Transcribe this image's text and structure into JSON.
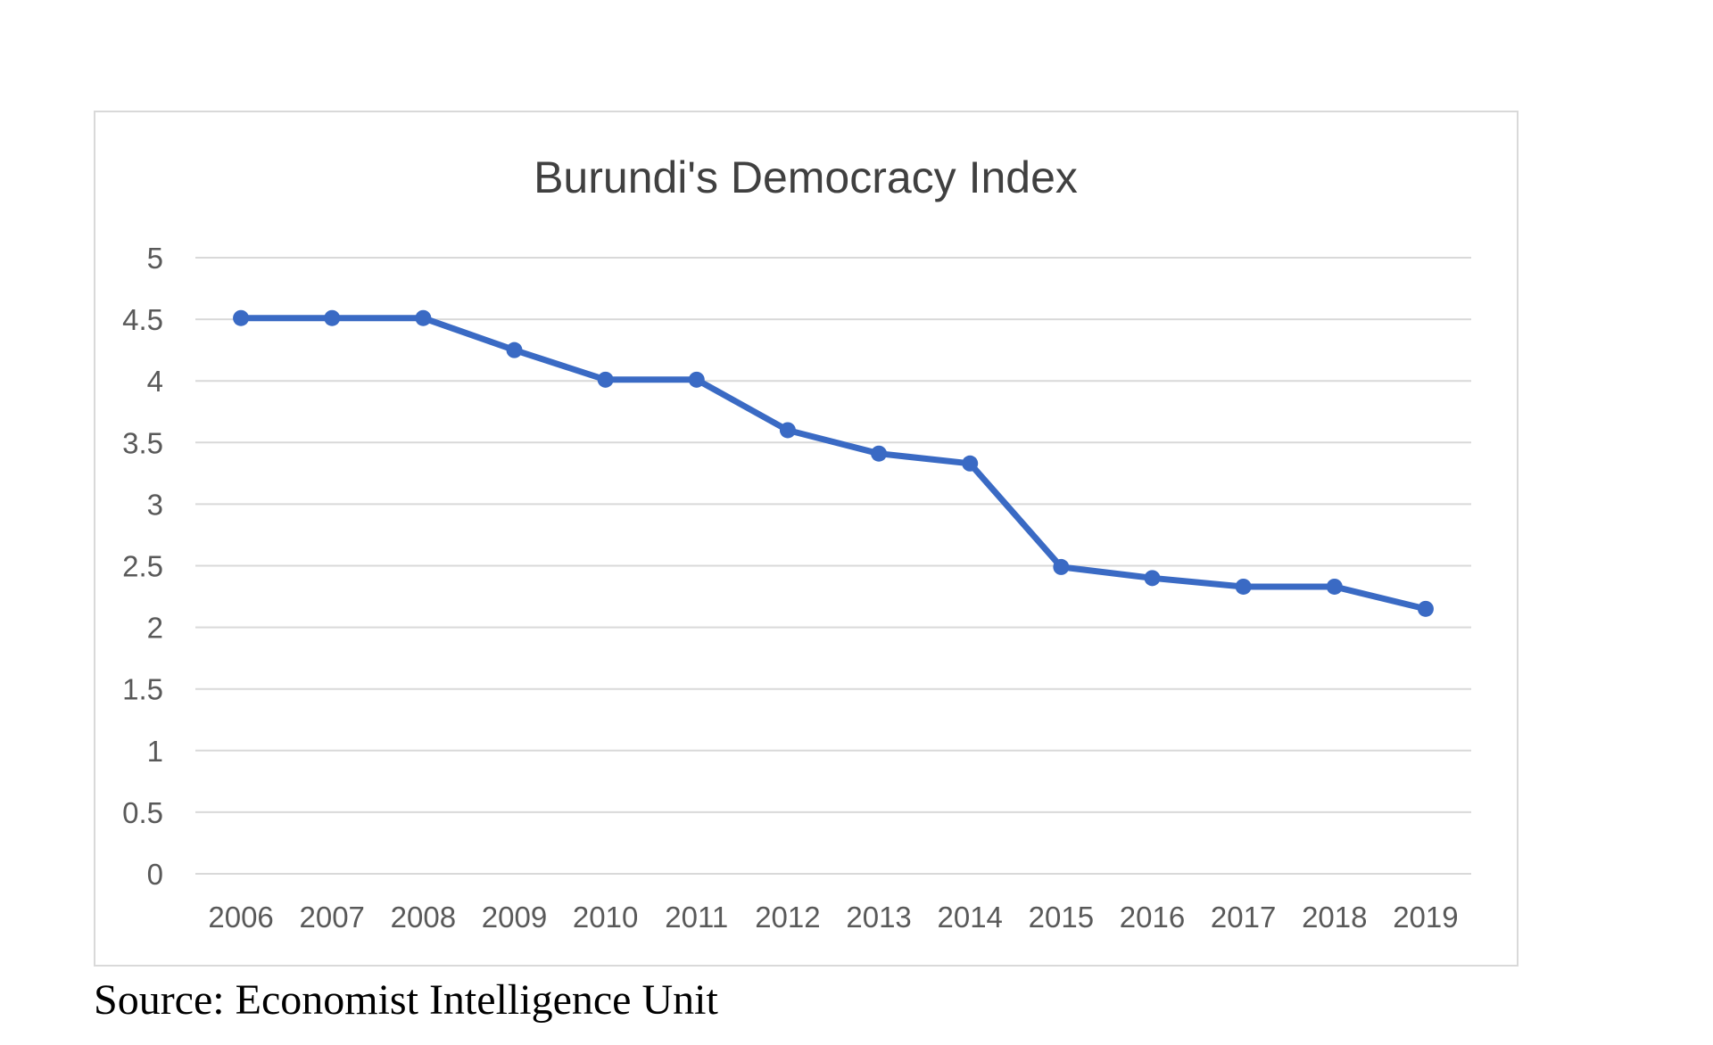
{
  "chart_data": {
    "type": "line",
    "title": "Burundi's Democracy Index",
    "xlabel": "",
    "ylabel": "",
    "ylim": [
      0,
      5
    ],
    "yticks": [
      "0",
      "0.5",
      "1",
      "1.5",
      "2",
      "2.5",
      "3",
      "3.5",
      "4",
      "4.5",
      "5"
    ],
    "categories": [
      "2006",
      "2007",
      "2008",
      "2009",
      "2010",
      "2011",
      "2012",
      "2013",
      "2014",
      "2015",
      "2016",
      "2017",
      "2018",
      "2019"
    ],
    "series": [
      {
        "values": [
          4.51,
          4.51,
          4.51,
          4.25,
          4.01,
          4.01,
          3.6,
          3.41,
          3.33,
          2.49,
          2.4,
          2.33,
          2.33,
          2.15
        ],
        "color": "#3a6ac4"
      }
    ],
    "grid": true,
    "legend": "none"
  },
  "source": "Source: Economist Intelligence Unit"
}
